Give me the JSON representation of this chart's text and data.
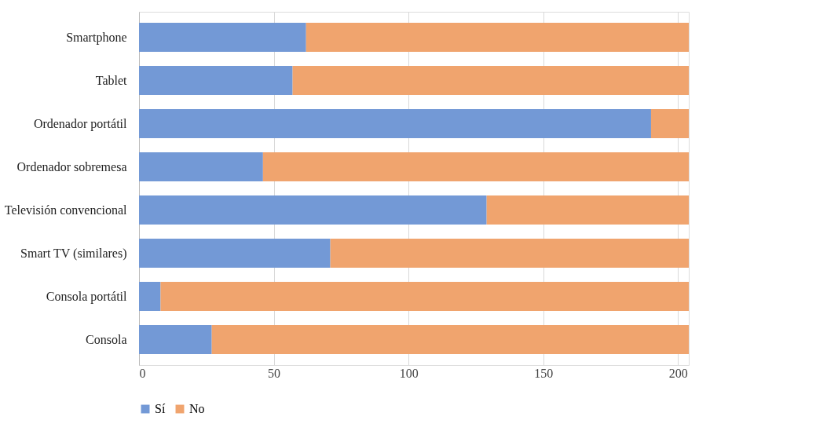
{
  "chart_data": {
    "type": "bar",
    "orientation": "horizontal",
    "stacked": true,
    "categories": [
      "Smartphone",
      "Tablet",
      "Ordenador portátil",
      "Ordenador sobremesa",
      "Televisión convencional",
      "Smart TV (similares)",
      "Consola portátil",
      "Consola"
    ],
    "series": [
      {
        "name": "Sí",
        "color": "#7399d6",
        "values": [
          62,
          57,
          190,
          46,
          129,
          71,
          8,
          27
        ]
      },
      {
        "name": "No",
        "color": "#f0a46e",
        "values": [
          142,
          147,
          14,
          158,
          75,
          133,
          196,
          177
        ]
      }
    ],
    "xlim": [
      0,
      204
    ],
    "xticks": [
      0,
      50,
      100,
      150,
      200
    ],
    "grid": "x",
    "legend": "bottom"
  }
}
